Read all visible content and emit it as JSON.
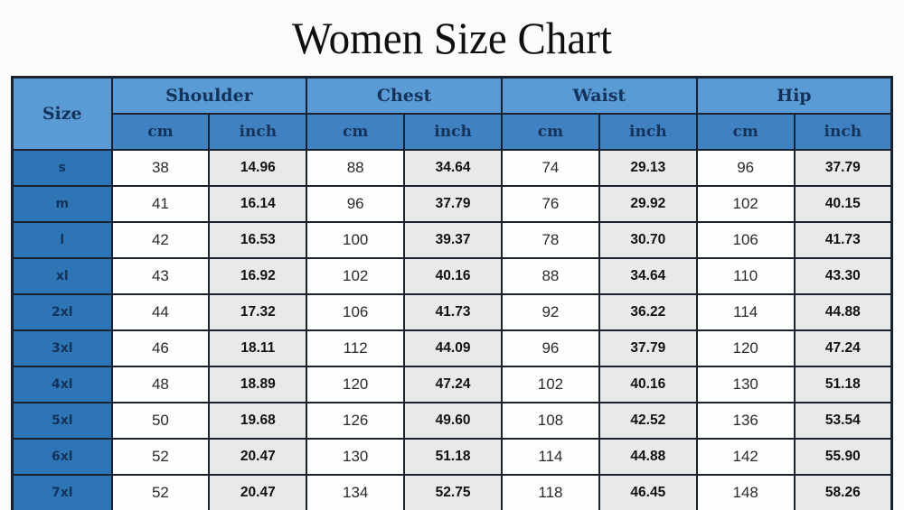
{
  "chart_data": {
    "type": "table",
    "title": "Women Size Chart",
    "corner_header": "Size",
    "group_headers": [
      "Shoulder",
      "Chest",
      "Waist",
      "Hip"
    ],
    "unit_headers": [
      "cm",
      "inch",
      "cm",
      "inch",
      "cm",
      "inch",
      "cm",
      "inch"
    ],
    "rows": [
      {
        "size": "s",
        "values": [
          "38",
          "14.96",
          "88",
          "34.64",
          "74",
          "29.13",
          "96",
          "37.79"
        ]
      },
      {
        "size": "m",
        "values": [
          "41",
          "16.14",
          "96",
          "37.79",
          "76",
          "29.92",
          "102",
          "40.15"
        ]
      },
      {
        "size": "l",
        "values": [
          "42",
          "16.53",
          "100",
          "39.37",
          "78",
          "30.70",
          "106",
          "41.73"
        ]
      },
      {
        "size": "xl",
        "values": [
          "43",
          "16.92",
          "102",
          "40.16",
          "88",
          "34.64",
          "110",
          "43.30"
        ]
      },
      {
        "size": "2xl",
        "values": [
          "44",
          "17.32",
          "106",
          "41.73",
          "92",
          "36.22",
          "114",
          "44.88"
        ]
      },
      {
        "size": "3xl",
        "values": [
          "46",
          "18.11",
          "112",
          "44.09",
          "96",
          "37.79",
          "120",
          "47.24"
        ]
      },
      {
        "size": "4xl",
        "values": [
          "48",
          "18.89",
          "120",
          "47.24",
          "102",
          "40.16",
          "130",
          "51.18"
        ]
      },
      {
        "size": "5xl",
        "values": [
          "50",
          "19.68",
          "126",
          "49.60",
          "108",
          "42.52",
          "136",
          "53.54"
        ]
      },
      {
        "size": "6xl",
        "values": [
          "52",
          "20.47",
          "130",
          "51.18",
          "114",
          "44.88",
          "142",
          "55.90"
        ]
      },
      {
        "size": "7xl",
        "values": [
          "52",
          "20.47",
          "134",
          "52.75",
          "118",
          "46.45",
          "148",
          "58.26"
        ]
      }
    ]
  },
  "colors": {
    "header_group_bg": "#5b9bd5",
    "header_unit_bg": "#3f81c1",
    "size_cell_bg": "#2e75b6",
    "cm_cell_bg": "#fefefe",
    "inch_cell_bg": "#e9e9e9",
    "header_text": "#14335b",
    "border": "#19222e"
  }
}
